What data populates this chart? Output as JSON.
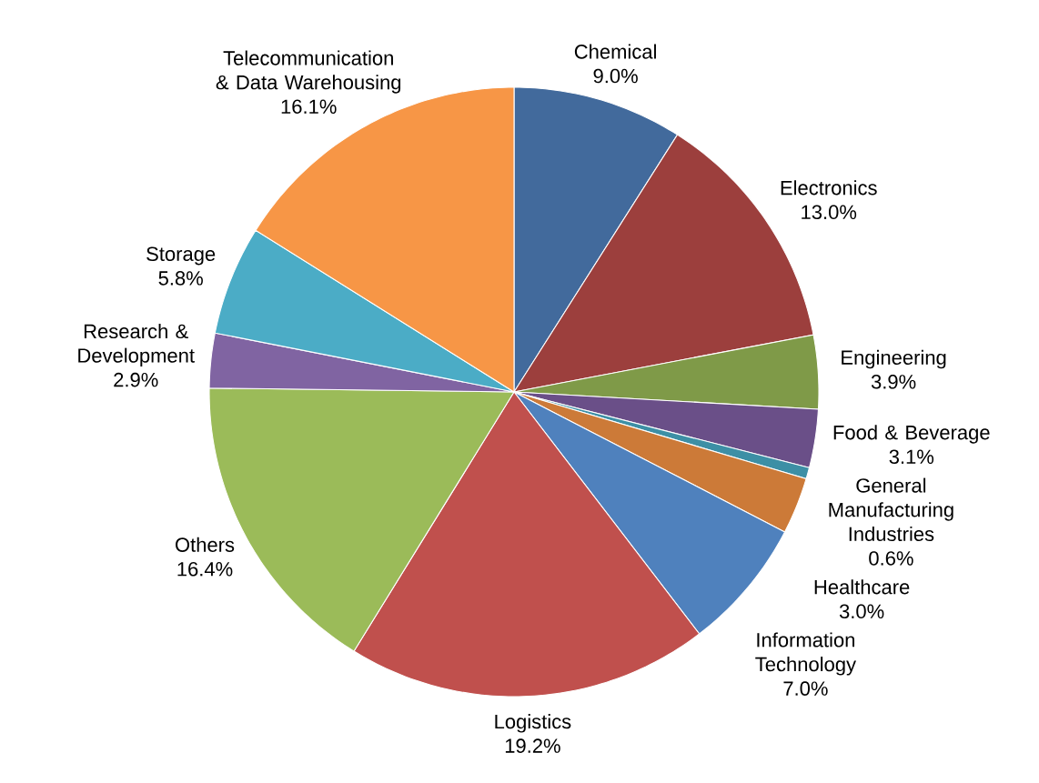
{
  "chart_data": {
    "type": "pie",
    "categories": [
      "Chemical",
      "Electronics",
      "Engineering",
      "Food & Beverage",
      "General Manufacturing Industries",
      "Healthcare",
      "Information Technology",
      "Logistics",
      "Others",
      "Research & Development",
      "Storage",
      "Telecommunication & Data Warehousing"
    ],
    "values": [
      9.0,
      13.0,
      3.9,
      3.1,
      0.6,
      3.0,
      7.0,
      19.2,
      16.4,
      2.9,
      5.8,
      16.1
    ],
    "value_labels": [
      "9.0%",
      "13.0%",
      "3.9%",
      "3.1%",
      "0.6%",
      "3.0%",
      "7.0%",
      "19.2%",
      "16.4%",
      "2.9%",
      "5.8%",
      "16.1%"
    ],
    "colors": [
      "#426a9c",
      "#9c3f3d",
      "#7f9a48",
      "#6a4f88",
      "#3d8fa5",
      "#cc7a38",
      "#4f81bd",
      "#c0504d",
      "#9bbb59",
      "#8064a2",
      "#4bacc6",
      "#f79646"
    ]
  }
}
